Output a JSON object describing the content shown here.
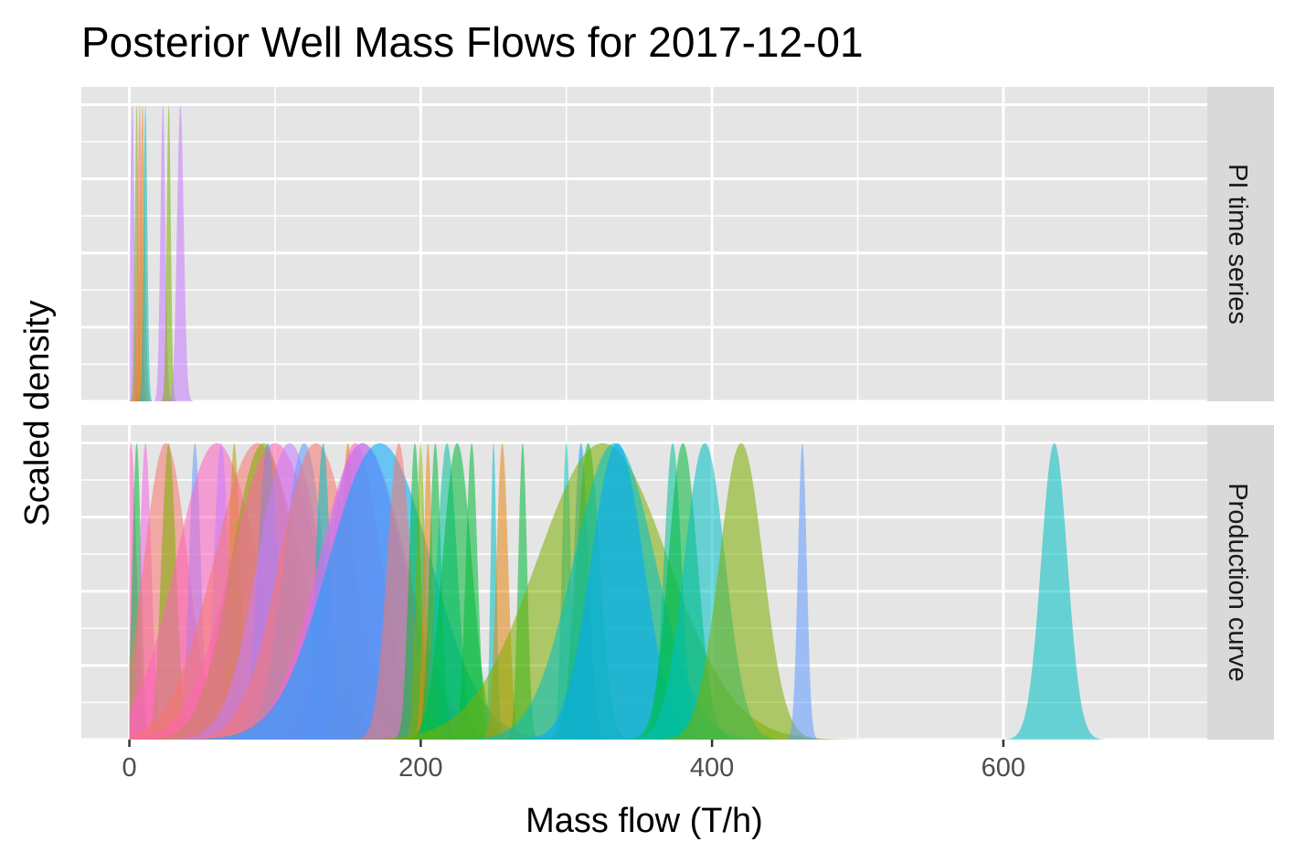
{
  "chart_data": {
    "type": "area",
    "title": "Posterior Well Mass Flows for 2017-12-01",
    "xlabel": "Mass flow (T/h)",
    "ylabel": "Scaled density",
    "xlim": [
      -33,
      740
    ],
    "ylim": [
      0,
      1.06
    ],
    "x_ticks": [
      0,
      200,
      400,
      600
    ],
    "x_tick_labels": [
      "0",
      "200",
      "400",
      "600"
    ],
    "y_ticks_visible": false,
    "grid": true,
    "legend": "none",
    "panels": [
      {
        "label": "PI time series",
        "series": [
          {
            "center": 2,
            "sd": 1.5,
            "color": "#C77CFF"
          },
          {
            "center": 5,
            "sd": 1.2,
            "color": "#7CAE00"
          },
          {
            "center": 7,
            "sd": 1.5,
            "color": "#F8766D"
          },
          {
            "center": 9,
            "sd": 1.6,
            "color": "#E68613"
          },
          {
            "center": 11,
            "sd": 1.3,
            "color": "#00BFC4"
          },
          {
            "center": 23,
            "sd": 1.7,
            "color": "#C77CFF"
          },
          {
            "center": 27,
            "sd": 1.4,
            "color": "#7CAE00"
          },
          {
            "center": 35,
            "sd": 2.3,
            "color": "#C77CFF"
          }
        ]
      },
      {
        "label": "Production curve",
        "series": [
          {
            "center": 1,
            "sd": 4,
            "color": "#FF61C3"
          },
          {
            "center": 5,
            "sd": 3,
            "color": "#00BA38"
          },
          {
            "center": 11,
            "sd": 4,
            "color": "#F564E3"
          },
          {
            "center": 25,
            "sd": 15,
            "color": "#F8766D"
          },
          {
            "center": 27,
            "sd": 5,
            "color": "#7CAE00"
          },
          {
            "center": 45,
            "sd": 4,
            "color": "#619CFF"
          },
          {
            "center": 60,
            "sd": 28,
            "color": "#FF61C3"
          },
          {
            "center": 63,
            "sd": 5,
            "color": "#C77CFF"
          },
          {
            "center": 72,
            "sd": 4,
            "color": "#B79F00"
          },
          {
            "center": 88,
            "sd": 30,
            "color": "#F8766D"
          },
          {
            "center": 92,
            "sd": 22,
            "color": "#7CAE00"
          },
          {
            "center": 95,
            "sd": 7,
            "color": "#00A9FF"
          },
          {
            "center": 100,
            "sd": 30,
            "color": "#FF64B0"
          },
          {
            "center": 110,
            "sd": 22,
            "color": "#C77CFF"
          },
          {
            "center": 120,
            "sd": 14,
            "color": "#619CFF"
          },
          {
            "center": 128,
            "sd": 25,
            "color": "#F8766D"
          },
          {
            "center": 133,
            "sd": 5,
            "color": "#00BFC4"
          },
          {
            "center": 150,
            "sd": 5,
            "color": "#E68613"
          },
          {
            "center": 155,
            "sd": 18,
            "color": "#FF61C3"
          },
          {
            "center": 160,
            "sd": 28,
            "color": "#619CFF"
          },
          {
            "center": 160,
            "sd": 30,
            "color": "#F564E3"
          },
          {
            "center": 172,
            "sd": 35,
            "color": "#00A9FF"
          },
          {
            "center": 185,
            "sd": 8,
            "color": "#F8766D"
          },
          {
            "center": 196,
            "sd": 4,
            "color": "#00BA38"
          },
          {
            "center": 200,
            "sd": 3,
            "color": "#7CAE00"
          },
          {
            "center": 205,
            "sd": 3,
            "color": "#E68613"
          },
          {
            "center": 210,
            "sd": 4,
            "color": "#00BA38"
          },
          {
            "center": 218,
            "sd": 7,
            "color": "#00C19A"
          },
          {
            "center": 225,
            "sd": 10,
            "color": "#00BA38"
          },
          {
            "center": 235,
            "sd": 4,
            "color": "#00BA38"
          },
          {
            "center": 250,
            "sd": 2,
            "color": "#00BFC4"
          },
          {
            "center": 256,
            "sd": 4,
            "color": "#E68613"
          },
          {
            "center": 270,
            "sd": 3,
            "color": "#00BA38"
          },
          {
            "center": 300,
            "sd": 3,
            "color": "#00BFC4"
          },
          {
            "center": 310,
            "sd": 5,
            "color": "#00A9FF"
          },
          {
            "center": 315,
            "sd": 8,
            "color": "#00BA38"
          },
          {
            "center": 325,
            "sd": 45,
            "color": "#7CAE00"
          },
          {
            "center": 333,
            "sd": 28,
            "color": "#00BFC4"
          },
          {
            "center": 335,
            "sd": 18,
            "color": "#00A9FF"
          },
          {
            "center": 373,
            "sd": 6,
            "color": "#00C19A"
          },
          {
            "center": 380,
            "sd": 10,
            "color": "#00BA38"
          },
          {
            "center": 395,
            "sd": 14,
            "color": "#00BFC4"
          },
          {
            "center": 420,
            "sd": 15,
            "color": "#7CAE00"
          },
          {
            "center": 462,
            "sd": 3,
            "color": "#619CFF"
          },
          {
            "center": 635,
            "sd": 9,
            "color": "#00BFC4"
          }
        ]
      }
    ]
  }
}
